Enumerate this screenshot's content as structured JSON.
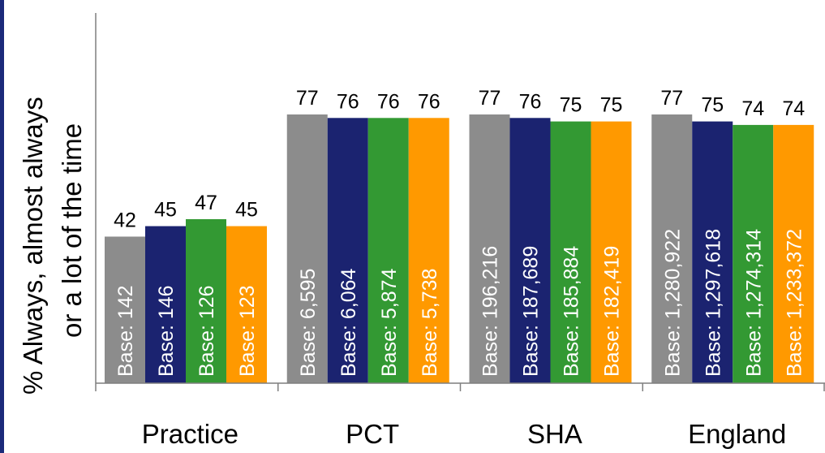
{
  "chart_data": {
    "type": "bar",
    "ylabel": "% Always, almost always or a lot of the time",
    "ylabel_lines": [
      "% Always, almost always",
      "or a lot of the time"
    ],
    "categories": [
      "Practice",
      "PCT",
      "SHA",
      "England"
    ],
    "ylim": [
      0,
      100
    ],
    "series": [
      {
        "color": "#8c8c8c",
        "values": [
          42,
          77,
          77,
          77
        ],
        "bases": [
          "Base: 142",
          "Base: 6,595",
          "Base: 196,216",
          "Base: 1,280,922"
        ]
      },
      {
        "color": "#1b2370",
        "values": [
          45,
          76,
          76,
          75
        ],
        "bases": [
          "Base: 146",
          "Base: 6,064",
          "Base: 187,689",
          "Base: 1,297,618"
        ]
      },
      {
        "color": "#339933",
        "values": [
          47,
          76,
          75,
          74
        ],
        "bases": [
          "Base: 126",
          "Base: 5,874",
          "Base: 185,884",
          "Base: 1,274,314"
        ]
      },
      {
        "color": "#ff9900",
        "values": [
          45,
          76,
          75,
          74
        ],
        "bases": [
          "Base: 123",
          "Base: 5,738",
          "Base: 182,419",
          "Base: 1,233,372"
        ]
      }
    ],
    "grid": false,
    "legend": "none"
  }
}
